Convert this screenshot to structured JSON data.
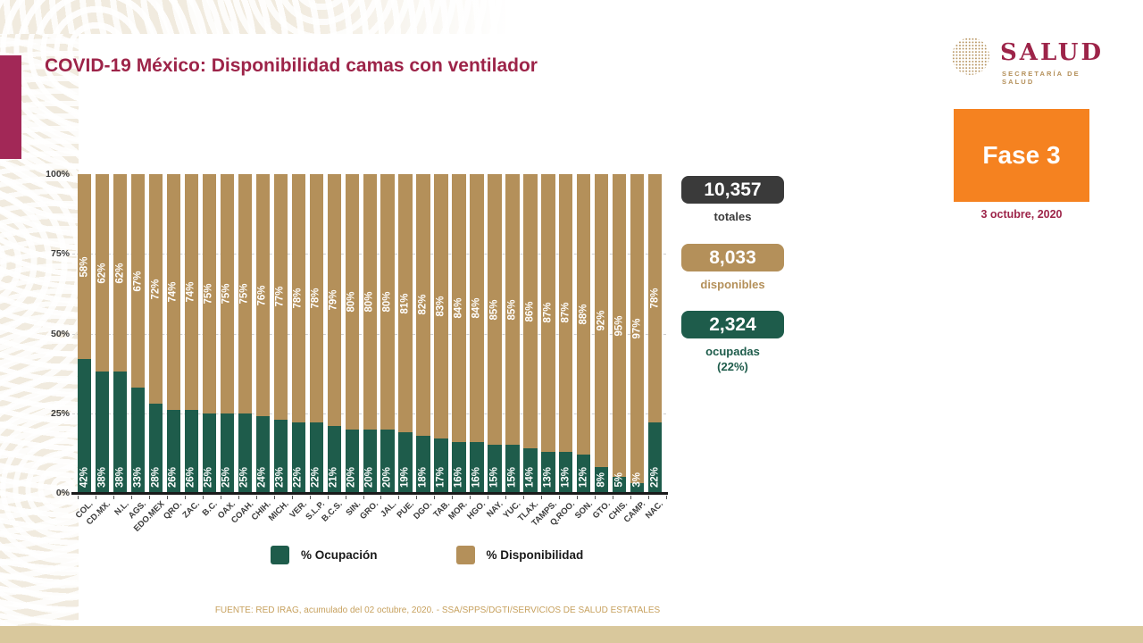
{
  "header": {
    "title": "COVID-19 México: Disponibilidad camas con ventilador",
    "logo_name": "SALUD",
    "logo_subtitle": "SECRETARÍA DE SALUD",
    "phase_label": "Fase 3",
    "date": "3 octubre, 2020"
  },
  "stats": [
    {
      "value": "10,357",
      "label": "totales",
      "box_color": "#3a3a3a",
      "label_color": "#3a3a3a"
    },
    {
      "value": "8,033",
      "label": "disponibles",
      "box_color": "#b4905a",
      "label_color": "#b4905a"
    },
    {
      "value": "2,324",
      "label": "ocupadas",
      "sublabel": "(22%)",
      "box_color": "#1e5c4b",
      "label_color": "#1e5c4b"
    }
  ],
  "chart_data": {
    "type": "bar",
    "stacked": true,
    "orientation": "vertical",
    "categories": [
      "COL.",
      "CD.MX.",
      "N.L.",
      "AGS.",
      "EDO.MEX",
      "QRO.",
      "ZAC.",
      "B.C.",
      "OAX.",
      "COAH.",
      "CHIH.",
      "MICH.",
      "VER.",
      "S.L.P.",
      "B.C.S.",
      "SIN.",
      "GRO.",
      "JAL.",
      "PUE.",
      "DGO.",
      "TAB.",
      "MOR.",
      "HGO.",
      "NAY.",
      "YUC.",
      "TLAX.",
      "TAMPS.",
      "Q.ROO.",
      "SON.",
      "GTO.",
      "CHIS.",
      "CAMP.",
      "NAC."
    ],
    "series": [
      {
        "name": "% Ocupación",
        "color": "#1e5c4b",
        "values": [
          42,
          38,
          38,
          33,
          28,
          26,
          26,
          25,
          25,
          25,
          24,
          23,
          22,
          22,
          21,
          20,
          20,
          20,
          19,
          18,
          17,
          16,
          16,
          15,
          15,
          14,
          13,
          13,
          12,
          8,
          5,
          3,
          22
        ]
      },
      {
        "name": "% Disponibilidad",
        "color": "#b4905a",
        "values": [
          58,
          62,
          62,
          67,
          72,
          74,
          74,
          75,
          75,
          75,
          76,
          77,
          78,
          78,
          79,
          80,
          80,
          80,
          81,
          82,
          83,
          84,
          84,
          85,
          85,
          86,
          87,
          87,
          88,
          92,
          95,
          97,
          78
        ]
      }
    ],
    "y_ticks": [
      "100%",
      "75%",
      "50%",
      "25%",
      "0%"
    ],
    "ylim": [
      0,
      100
    ],
    "value_label_format": "percent",
    "grid": "dashed horizontal at 25,50,75",
    "legend_position": "bottom"
  },
  "footer": {
    "source": "FUENTE: RED IRAG, acumulado del 02 octubre, 2020. -  SSA/SPPS/DGTI/SERVICIOS DE SALUD ESTATALES"
  },
  "colors": {
    "guinda": "#9d2449",
    "accent-bar": "#a22857",
    "green": "#1e5c4b",
    "tan": "#b4905a",
    "orange": "#f58220",
    "dark": "#3a3a3a",
    "footer-tan": "#c7a15e",
    "bottom-bar": "#d9c89c",
    "axis-text": "#3c3c3c"
  }
}
